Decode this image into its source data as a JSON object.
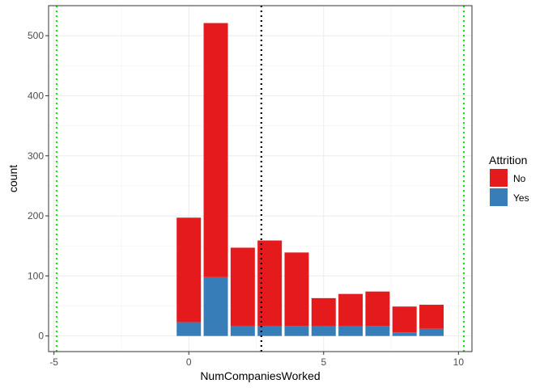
{
  "chart_data": {
    "type": "bar",
    "stacked": true,
    "x": [
      0,
      1,
      2,
      3,
      4,
      5,
      6,
      7,
      8,
      9
    ],
    "series": [
      {
        "name": "No",
        "color": "#E41A1C",
        "values": [
          174,
          423,
          131,
          143,
          122,
          47,
          54,
          57,
          43,
          40
        ]
      },
      {
        "name": "Yes",
        "color": "#377EB8",
        "values": [
          23,
          98,
          16,
          16,
          17,
          16,
          16,
          17,
          6,
          12
        ]
      }
    ],
    "xlabel": "NumCompaniesWorked",
    "ylabel": "count",
    "xlim": [
      -5.2,
      10.5
    ],
    "ylim": [
      -26,
      550
    ],
    "xticks": [
      -5,
      0,
      5,
      10
    ],
    "xtick_labels": [
      "-5",
      "0",
      "5",
      "10"
    ],
    "yticks": [
      0,
      100,
      200,
      300,
      400,
      500
    ],
    "ytick_labels": [
      "0",
      "100",
      "200",
      "300",
      "400",
      "500"
    ],
    "vlines": [
      {
        "x": -4.9,
        "color": "#00EE00",
        "style": "dotted"
      },
      {
        "x": 2.69,
        "color": "#000000",
        "style": "dotted"
      },
      {
        "x": 10.2,
        "color": "#00EE00",
        "style": "dotted"
      }
    ],
    "grid": true,
    "legend": {
      "title": "Attrition",
      "position": "right",
      "entries": [
        "No",
        "Yes"
      ]
    }
  }
}
